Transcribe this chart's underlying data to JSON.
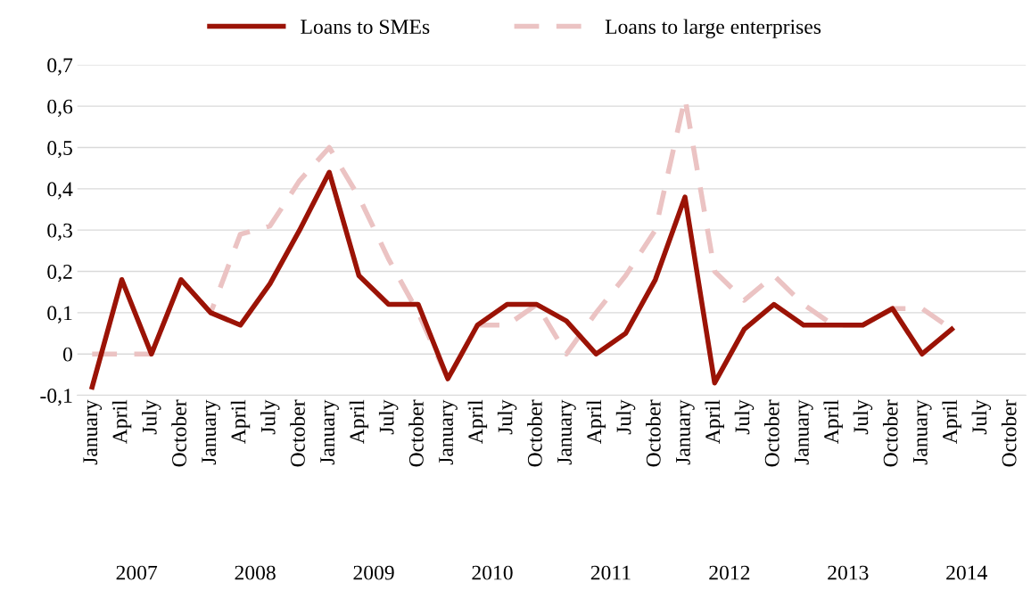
{
  "chart_data": {
    "type": "line",
    "categories": [
      "January",
      "April",
      "July",
      "October",
      "January",
      "April",
      "July",
      "October",
      "January",
      "April",
      "July",
      "October",
      "January",
      "April",
      "July",
      "October",
      "January",
      "April",
      "July",
      "October",
      "January",
      "April",
      "July",
      "October",
      "January",
      "April",
      "July",
      "October",
      "January",
      "April",
      "July",
      "October"
    ],
    "series": [
      {
        "name": "Loans to SMEs",
        "color": "#9b1306",
        "line_style": "solid",
        "values": [
          -0.08,
          0.18,
          0.0,
          0.18,
          0.1,
          0.07,
          0.17,
          0.3,
          0.44,
          0.19,
          0.12,
          0.12,
          -0.06,
          0.07,
          0.12,
          0.12,
          0.08,
          0.0,
          0.05,
          0.18,
          0.38,
          -0.07,
          0.06,
          0.12,
          0.07,
          0.07,
          0.07,
          0.11,
          0.0,
          0.06,
          null,
          null
        ]
      },
      {
        "name": "Loans to large enterprises",
        "color": "#ebc3c3",
        "line_style": "dashed",
        "values": [
          0.0,
          0.0,
          0.0,
          0.18,
          0.1,
          0.29,
          0.31,
          0.42,
          0.5,
          0.38,
          0.23,
          0.1,
          -0.06,
          0.07,
          0.07,
          0.12,
          0.0,
          0.1,
          0.19,
          0.3,
          0.62,
          0.2,
          0.13,
          0.19,
          0.12,
          0.07,
          0.07,
          0.11,
          0.11,
          0.06,
          null,
          null
        ]
      }
    ],
    "ylim": [
      -0.1,
      0.7
    ],
    "yticks": [
      {
        "value": -0.1,
        "label": "-0,1"
      },
      0,
      {
        "value": 0.1,
        "label": "0,1"
      },
      {
        "value": 0.2,
        "label": "0,2"
      },
      {
        "value": 0.3,
        "label": "0,3"
      },
      {
        "value": 0.4,
        "label": "0,4"
      },
      {
        "value": 0.5,
        "label": "0,5"
      },
      {
        "value": 0.6,
        "label": "0,6"
      },
      {
        "value": 0.7,
        "label": "0,7"
      }
    ],
    "grid": "y",
    "legend": "top",
    "marker": "none",
    "annotations": [
      "2007",
      "2008",
      "2009",
      "2010",
      "2011",
      "2012",
      "2013",
      "2014"
    ]
  }
}
